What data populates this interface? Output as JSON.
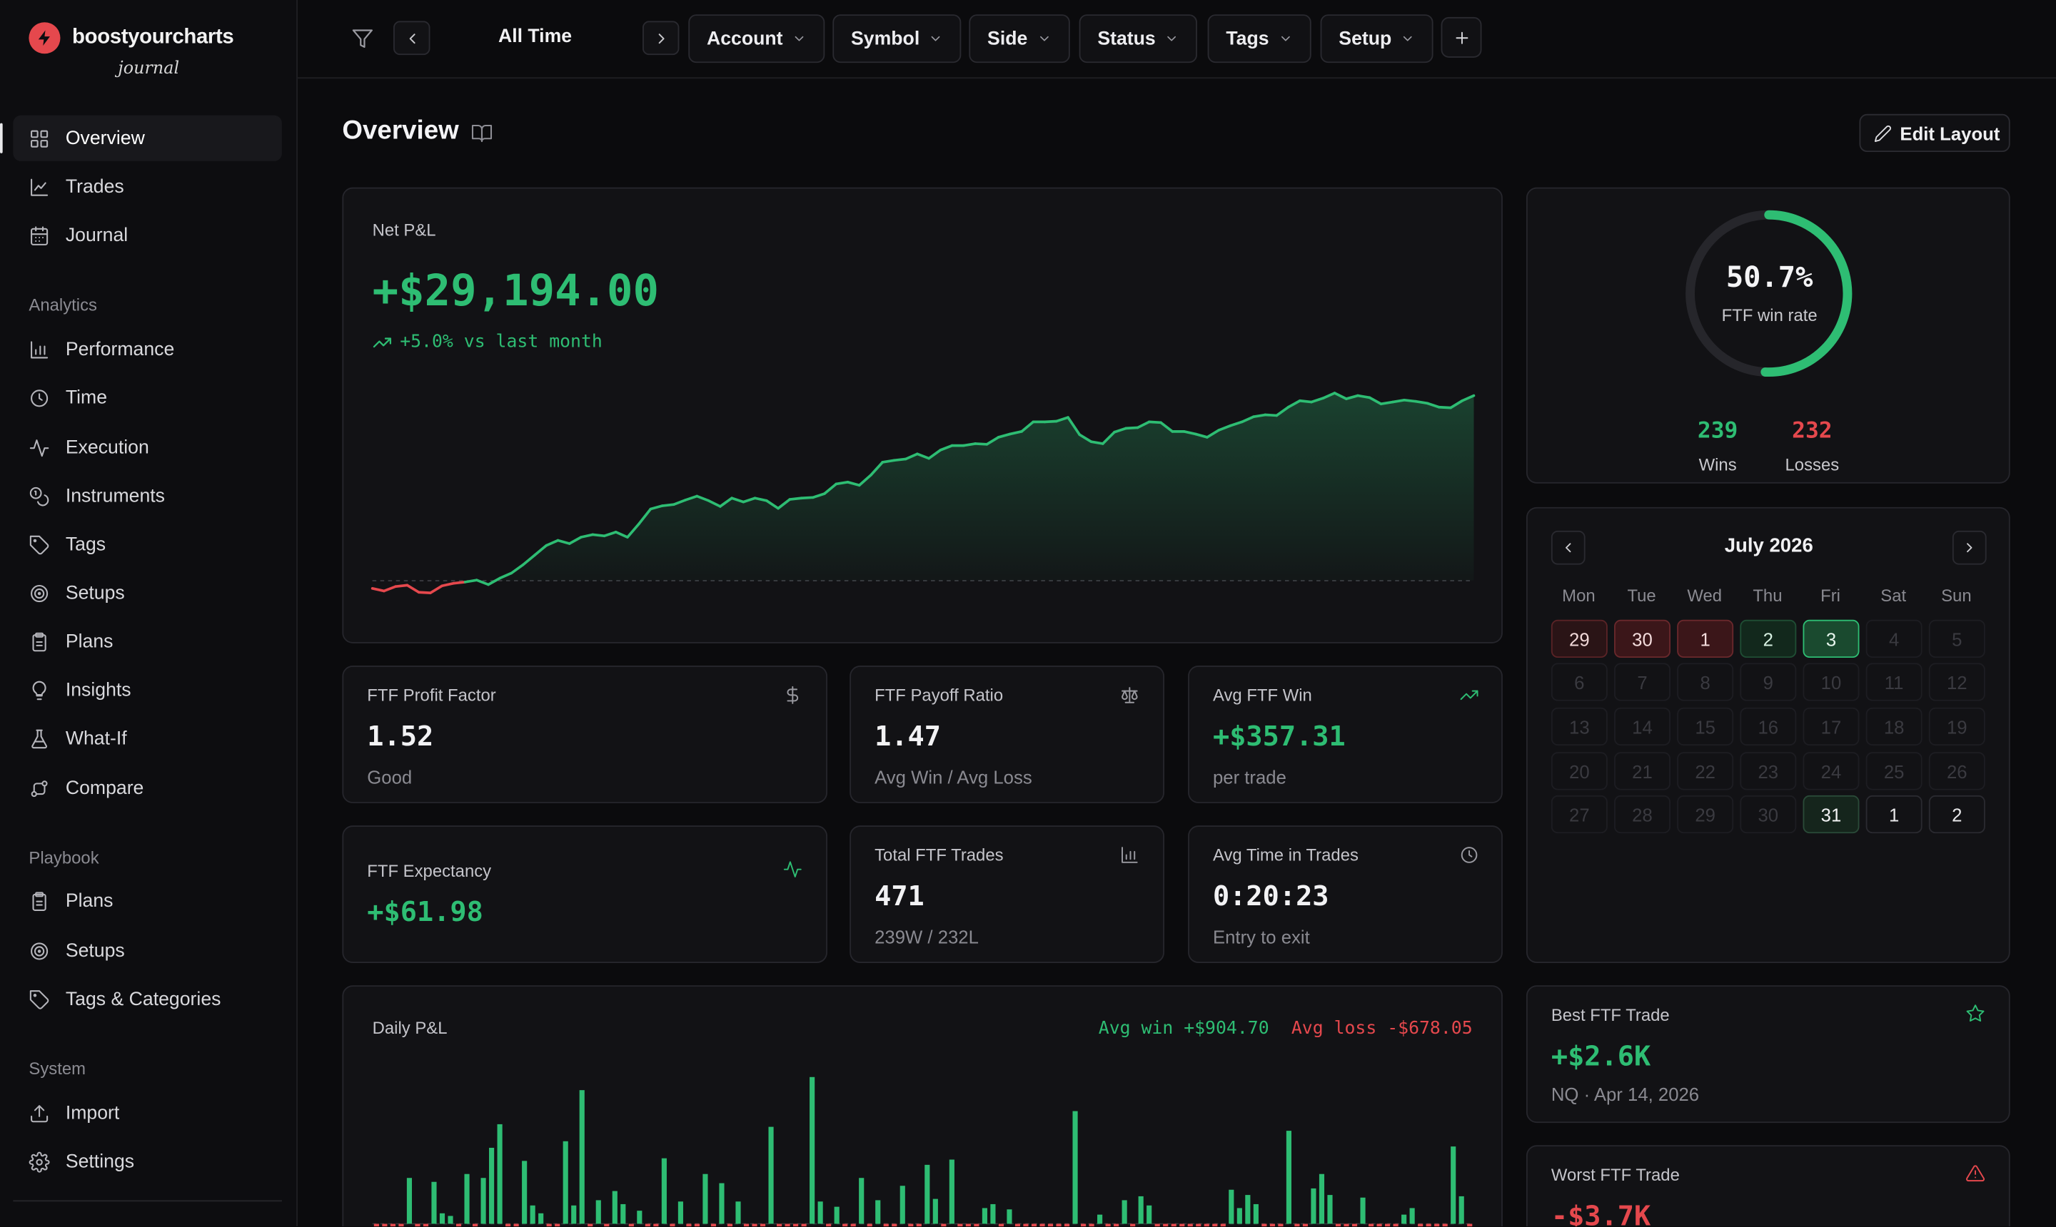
{
  "brand": {
    "name": "boostyourcharts",
    "subtitle": "journal"
  },
  "sidebar": {
    "main": [
      {
        "label": "Overview",
        "icon": "grid-icon",
        "active": true
      },
      {
        "label": "Trades",
        "icon": "line-chart-icon"
      },
      {
        "label": "Journal",
        "icon": "calendar-icon"
      }
    ],
    "analytics_title": "Analytics",
    "analytics": [
      {
        "label": "Performance",
        "icon": "bar-chart-icon"
      },
      {
        "label": "Time",
        "icon": "clock-icon"
      },
      {
        "label": "Execution",
        "icon": "activity-icon"
      },
      {
        "label": "Instruments",
        "icon": "coins-icon"
      },
      {
        "label": "Tags",
        "icon": "tag-icon"
      },
      {
        "label": "Setups",
        "icon": "target-icon"
      },
      {
        "label": "Plans",
        "icon": "clipboard-icon"
      },
      {
        "label": "Insights",
        "icon": "lightbulb-icon"
      },
      {
        "label": "What-If",
        "icon": "flask-icon"
      },
      {
        "label": "Compare",
        "icon": "compare-icon"
      }
    ],
    "playbook_title": "Playbook",
    "playbook": [
      {
        "label": "Plans",
        "icon": "clipboard-icon"
      },
      {
        "label": "Setups",
        "icon": "target-icon"
      },
      {
        "label": "Tags & Categories",
        "icon": "tag-icon"
      }
    ],
    "system_title": "System",
    "system": [
      {
        "label": "Import",
        "icon": "upload-icon"
      },
      {
        "label": "Settings",
        "icon": "gear-icon"
      }
    ]
  },
  "topbar": {
    "period": "All Time",
    "filters": [
      "Account",
      "Symbol",
      "Side",
      "Status",
      "Tags",
      "Setup"
    ]
  },
  "page": {
    "title": "Overview",
    "edit_layout": "Edit Layout"
  },
  "net_pnl": {
    "label": "Net P&L",
    "value": "+$29,194.00",
    "change": "+5.0% vs last month",
    "series": [
      -1.2,
      -1.6,
      -0.9,
      -0.7,
      -1.8,
      -1.9,
      -0.8,
      -0.4,
      -0.2,
      0.1,
      -0.6,
      0.4,
      1.2,
      2.5,
      4.0,
      5.5,
      6.3,
      5.8,
      6.8,
      7.2,
      7.0,
      7.6,
      6.8,
      8.9,
      11.2,
      11.7,
      11.9,
      12.6,
      13.2,
      12.5,
      11.6,
      12.9,
      12.3,
      12.9,
      12.5,
      11.3,
      12.7,
      12.9,
      13.0,
      13.6,
      15.1,
      15.4,
      14.9,
      16.5,
      18.5,
      18.8,
      19.0,
      19.8,
      19.1,
      20.4,
      21.1,
      21.1,
      21.4,
      21.3,
      22.4,
      22.9,
      23.3,
      24.8,
      24.8,
      24.9,
      25.5,
      22.8,
      21.7,
      21.4,
      23.2,
      23.8,
      23.9,
      24.8,
      24.7,
      23.3,
      23.3,
      22.9,
      22.4,
      23.5,
      24.2,
      24.8,
      25.6,
      25.9,
      25.8,
      27.1,
      28.1,
      27.9,
      28.5,
      29.3,
      28.4,
      28.9,
      28.6,
      27.6,
      27.9,
      28.2,
      28.0,
      27.7,
      27.1,
      27.0,
      28.1,
      28.9
    ]
  },
  "winrate": {
    "value": "50.7%",
    "label": "FTF win rate",
    "wins": "239",
    "wins_label": "Wins",
    "losses": "232",
    "losses_label": "Losses",
    "fraction": 0.507
  },
  "stats": {
    "profit_factor": {
      "label": "FTF Profit Factor",
      "value": "1.52",
      "sub": "Good",
      "icon": "dollar-icon"
    },
    "payoff_ratio": {
      "label": "FTF Payoff Ratio",
      "value": "1.47",
      "sub": "Avg Win / Avg Loss",
      "icon": "scale-icon"
    },
    "avg_win": {
      "label": "Avg FTF Win",
      "value": "+$357.31",
      "sub": "per trade",
      "icon": "trending-up-icon"
    },
    "expectancy": {
      "label": "FTF Expectancy",
      "value": "+$61.98",
      "icon": "activity-icon"
    },
    "total_trades": {
      "label": "Total FTF Trades",
      "value": "471",
      "sub": "239W / 232L",
      "icon": "bar-chart-icon"
    },
    "avg_time": {
      "label": "Avg Time in Trades",
      "value": "0:20:23",
      "sub": "Entry to exit",
      "icon": "clock-icon"
    }
  },
  "calendar": {
    "title": "July 2026",
    "dow": [
      "Mon",
      "Tue",
      "Wed",
      "Thu",
      "Fri",
      "Sat",
      "Sun"
    ],
    "weeks": [
      [
        "29",
        "30",
        "1",
        "2",
        "3",
        "4",
        "5"
      ],
      [
        "6",
        "7",
        "8",
        "9",
        "10",
        "11",
        "12"
      ],
      [
        "13",
        "14",
        "15",
        "16",
        "17",
        "18",
        "19"
      ],
      [
        "20",
        "21",
        "22",
        "23",
        "24",
        "25",
        "26"
      ],
      [
        "27",
        "28",
        "29",
        "30",
        "31",
        "1",
        "2"
      ]
    ]
  },
  "daily_pnl": {
    "label": "Daily P&L",
    "avg_win": "Avg win +$904.70",
    "avg_loss": "Avg loss -$678.05",
    "values": [
      -80,
      -40,
      -90,
      -50,
      350,
      -120,
      -60,
      320,
      80,
      60,
      -140,
      380,
      -70,
      350,
      580,
      760,
      -200,
      -100,
      480,
      140,
      80,
      -160,
      -60,
      630,
      140,
      1020,
      -120,
      180,
      -90,
      250,
      150,
      -60,
      100,
      -100,
      -70,
      500,
      -180,
      170,
      -90,
      -140,
      380,
      -110,
      310,
      -80,
      170,
      -120,
      -60,
      -90,
      740,
      -80,
      -60,
      -50,
      -140,
      1120,
      170,
      -60,
      130,
      -70,
      -100,
      350,
      -90,
      180,
      -120,
      -60,
      290,
      -70,
      -50,
      450,
      190,
      -80,
      490,
      -110,
      -60,
      -120,
      120,
      150,
      -80,
      110,
      -150,
      -140,
      -80,
      -60,
      -90,
      -60,
      -70,
      860,
      -120,
      -80,
      70,
      -100,
      -70,
      180,
      -60,
      210,
      140,
      -80,
      -60,
      -70,
      -160,
      -110,
      -50,
      -140,
      -80,
      -110,
      260,
      120,
      220,
      150,
      -90,
      -60,
      -120,
      710,
      -140,
      -60,
      270,
      380,
      220,
      -80,
      -90,
      -120,
      200,
      -100,
      -80,
      -70,
      -150,
      70,
      120,
      -90,
      -80,
      -60,
      -100,
      590,
      210,
      -120
    ]
  },
  "best_trade": {
    "label": "Best FTF Trade",
    "value": "+$2.6K",
    "sub": "NQ · Apr 14, 2026",
    "icon": "star-icon"
  },
  "worst_trade": {
    "label": "Worst FTF Trade",
    "value": "-$3.7K",
    "icon": "alert-triangle-icon"
  },
  "colors": {
    "green": "#2ebd73",
    "red": "#e5484d",
    "bg": "#0b0b0d",
    "card": "#121215"
  }
}
